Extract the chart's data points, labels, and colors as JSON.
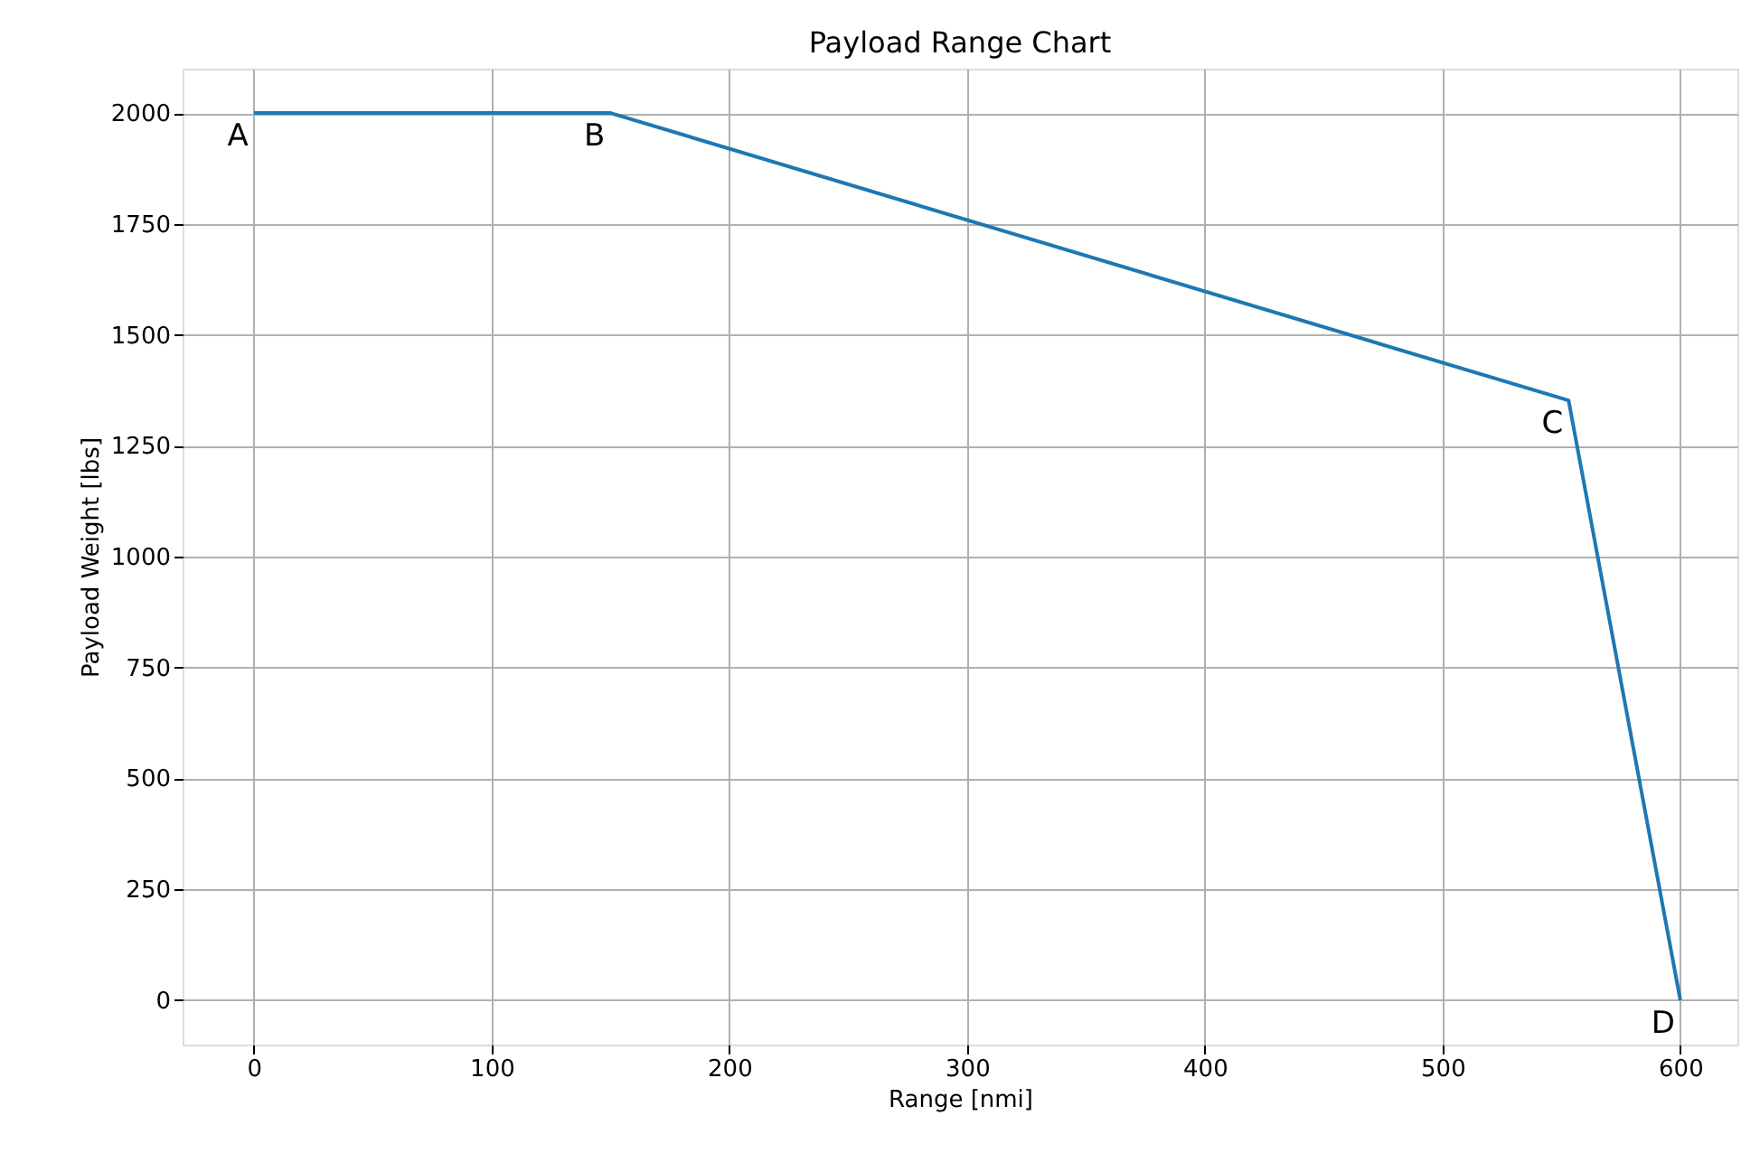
{
  "chart_data": {
    "type": "line",
    "title": "Payload Range Chart",
    "xlabel": "Range [nmi]",
    "ylabel": "Payload Weight [lbs]",
    "x": [
      0,
      150,
      553,
      600
    ],
    "series": [
      {
        "color": "#1f77b4",
        "values": [
          2000,
          2000,
          1352,
          0
        ]
      }
    ],
    "xlim": [
      -30,
      624
    ],
    "xticks": [
      0,
      100,
      200,
      300,
      400,
      500,
      600
    ],
    "ylim": [
      -100,
      2100
    ],
    "yticks": [
      0,
      250,
      500,
      750,
      1000,
      1250,
      1500,
      1750,
      2000
    ],
    "grid": true,
    "marker": "none",
    "line_style": "solid",
    "annotations": [
      {
        "text": "A",
        "x": 0,
        "y": 2000
      },
      {
        "text": "B",
        "x": 150,
        "y": 2000
      },
      {
        "text": "C",
        "x": 553,
        "y": 1352
      },
      {
        "text": "D",
        "x": 600,
        "y": 0
      }
    ]
  }
}
